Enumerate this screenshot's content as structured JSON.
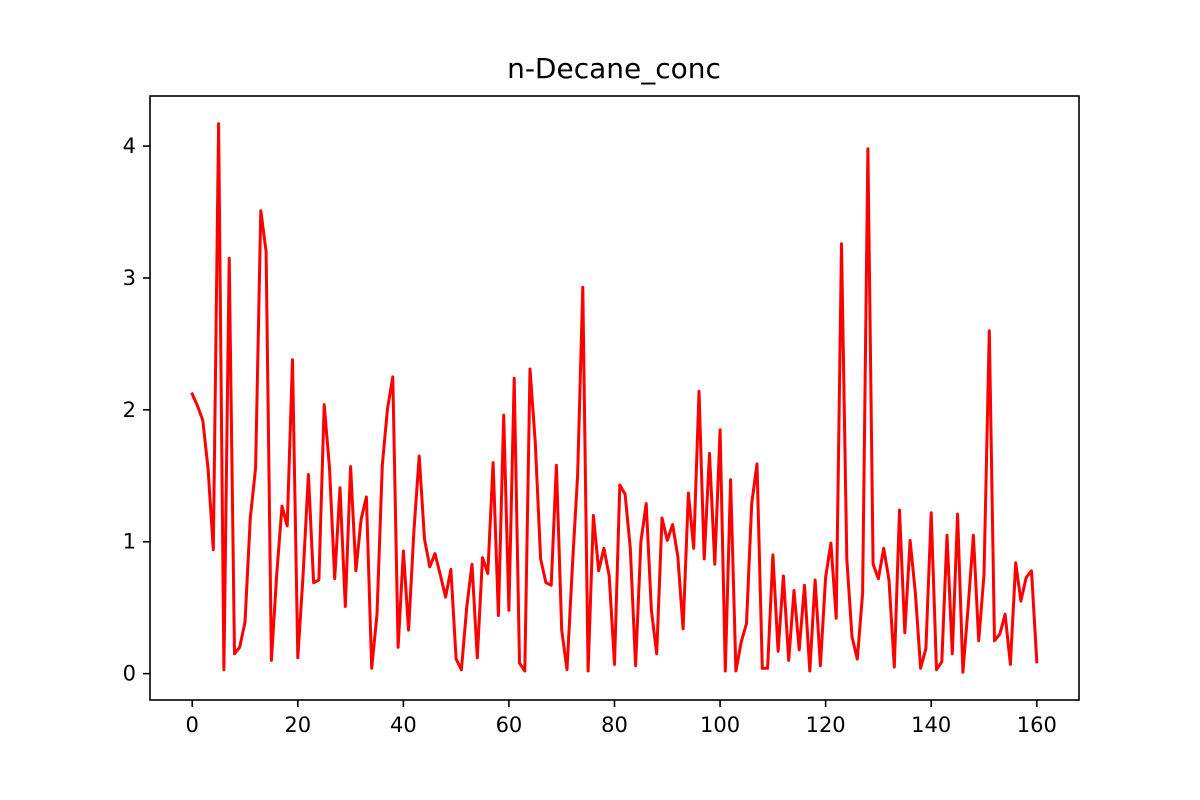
{
  "chart_data": {
    "type": "line",
    "title": "n-Decane_conc",
    "xlabel": "",
    "ylabel": "",
    "xlim": [
      -8,
      168
    ],
    "ylim": [
      -0.2,
      4.38
    ],
    "x_ticks": [
      0,
      20,
      40,
      60,
      80,
      100,
      120,
      140,
      160
    ],
    "y_ticks": [
      0,
      1,
      2,
      3,
      4
    ],
    "grid": false,
    "series": [
      {
        "color": "#ff0000",
        "x": [
          0,
          1,
          2,
          3,
          4,
          5,
          6,
          7,
          8,
          9,
          10,
          11,
          12,
          13,
          14,
          15,
          16,
          17,
          18,
          19,
          20,
          21,
          22,
          23,
          24,
          25,
          26,
          27,
          28,
          29,
          30,
          31,
          32,
          33,
          34,
          35,
          36,
          37,
          38,
          39,
          40,
          41,
          42,
          43,
          44,
          45,
          46,
          47,
          48,
          49,
          50,
          51,
          52,
          53,
          54,
          55,
          56,
          57,
          58,
          59,
          60,
          61,
          62,
          63,
          64,
          65,
          66,
          67,
          68,
          69,
          70,
          71,
          72,
          73,
          74,
          75,
          76,
          77,
          78,
          79,
          80,
          81,
          82,
          83,
          84,
          85,
          86,
          87,
          88,
          89,
          90,
          91,
          92,
          93,
          94,
          95,
          96,
          97,
          98,
          99,
          100,
          101,
          102,
          103,
          104,
          105,
          106,
          107,
          108,
          109,
          110,
          111,
          112,
          113,
          114,
          115,
          116,
          117,
          118,
          119,
          120,
          121,
          122,
          123,
          124,
          125,
          126,
          127,
          128,
          129,
          130,
          131,
          132,
          133,
          134,
          135,
          136,
          137,
          138,
          139,
          140,
          141,
          142,
          143,
          144,
          145,
          146,
          147,
          148,
          149,
          150,
          151,
          152,
          153,
          154,
          155,
          156,
          157,
          158,
          159,
          160
        ],
        "values": [
          2.12,
          2.03,
          1.92,
          1.55,
          0.94,
          4.17,
          0.03,
          3.15,
          0.15,
          0.2,
          0.39,
          1.18,
          1.56,
          3.51,
          3.2,
          0.1,
          0.75,
          1.27,
          1.12,
          2.38,
          0.12,
          0.75,
          1.51,
          0.69,
          0.71,
          2.04,
          1.56,
          0.72,
          1.41,
          0.51,
          1.57,
          0.78,
          1.17,
          1.34,
          0.04,
          0.45,
          1.58,
          2.01,
          2.25,
          0.2,
          0.93,
          0.33,
          1.08,
          1.65,
          1.02,
          0.81,
          0.91,
          0.75,
          0.58,
          0.79,
          0.11,
          0.03,
          0.5,
          0.83,
          0.12,
          0.88,
          0.76,
          1.6,
          0.44,
          1.96,
          0.48,
          2.24,
          0.08,
          0.02,
          2.31,
          1.75,
          0.87,
          0.69,
          0.67,
          1.58,
          0.33,
          0.03,
          0.8,
          1.5,
          2.93,
          0.02,
          1.2,
          0.78,
          0.95,
          0.74,
          0.07,
          1.43,
          1.36,
          0.95,
          0.06,
          1.0,
          1.29,
          0.48,
          0.15,
          1.18,
          1.01,
          1.13,
          0.89,
          0.34,
          1.37,
          0.95,
          2.14,
          0.87,
          1.67,
          0.83,
          1.85,
          0.02,
          1.47,
          0.02,
          0.24,
          0.38,
          1.29,
          1.59,
          0.04,
          0.04,
          0.9,
          0.17,
          0.74,
          0.1,
          0.63,
          0.18,
          0.67,
          0.02,
          0.71,
          0.06,
          0.73,
          0.99,
          0.42,
          3.26,
          0.87,
          0.28,
          0.11,
          0.61,
          3.98,
          0.83,
          0.72,
          0.95,
          0.71,
          0.05,
          1.24,
          0.31,
          1.01,
          0.61,
          0.04,
          0.19,
          1.22,
          0.03,
          0.09,
          1.05,
          0.15,
          1.21,
          0.01,
          0.51,
          1.05,
          0.25,
          0.75,
          2.6,
          0.25,
          0.3,
          0.45,
          0.07,
          0.84,
          0.55,
          0.73,
          0.78,
          0.09
        ]
      }
    ]
  }
}
